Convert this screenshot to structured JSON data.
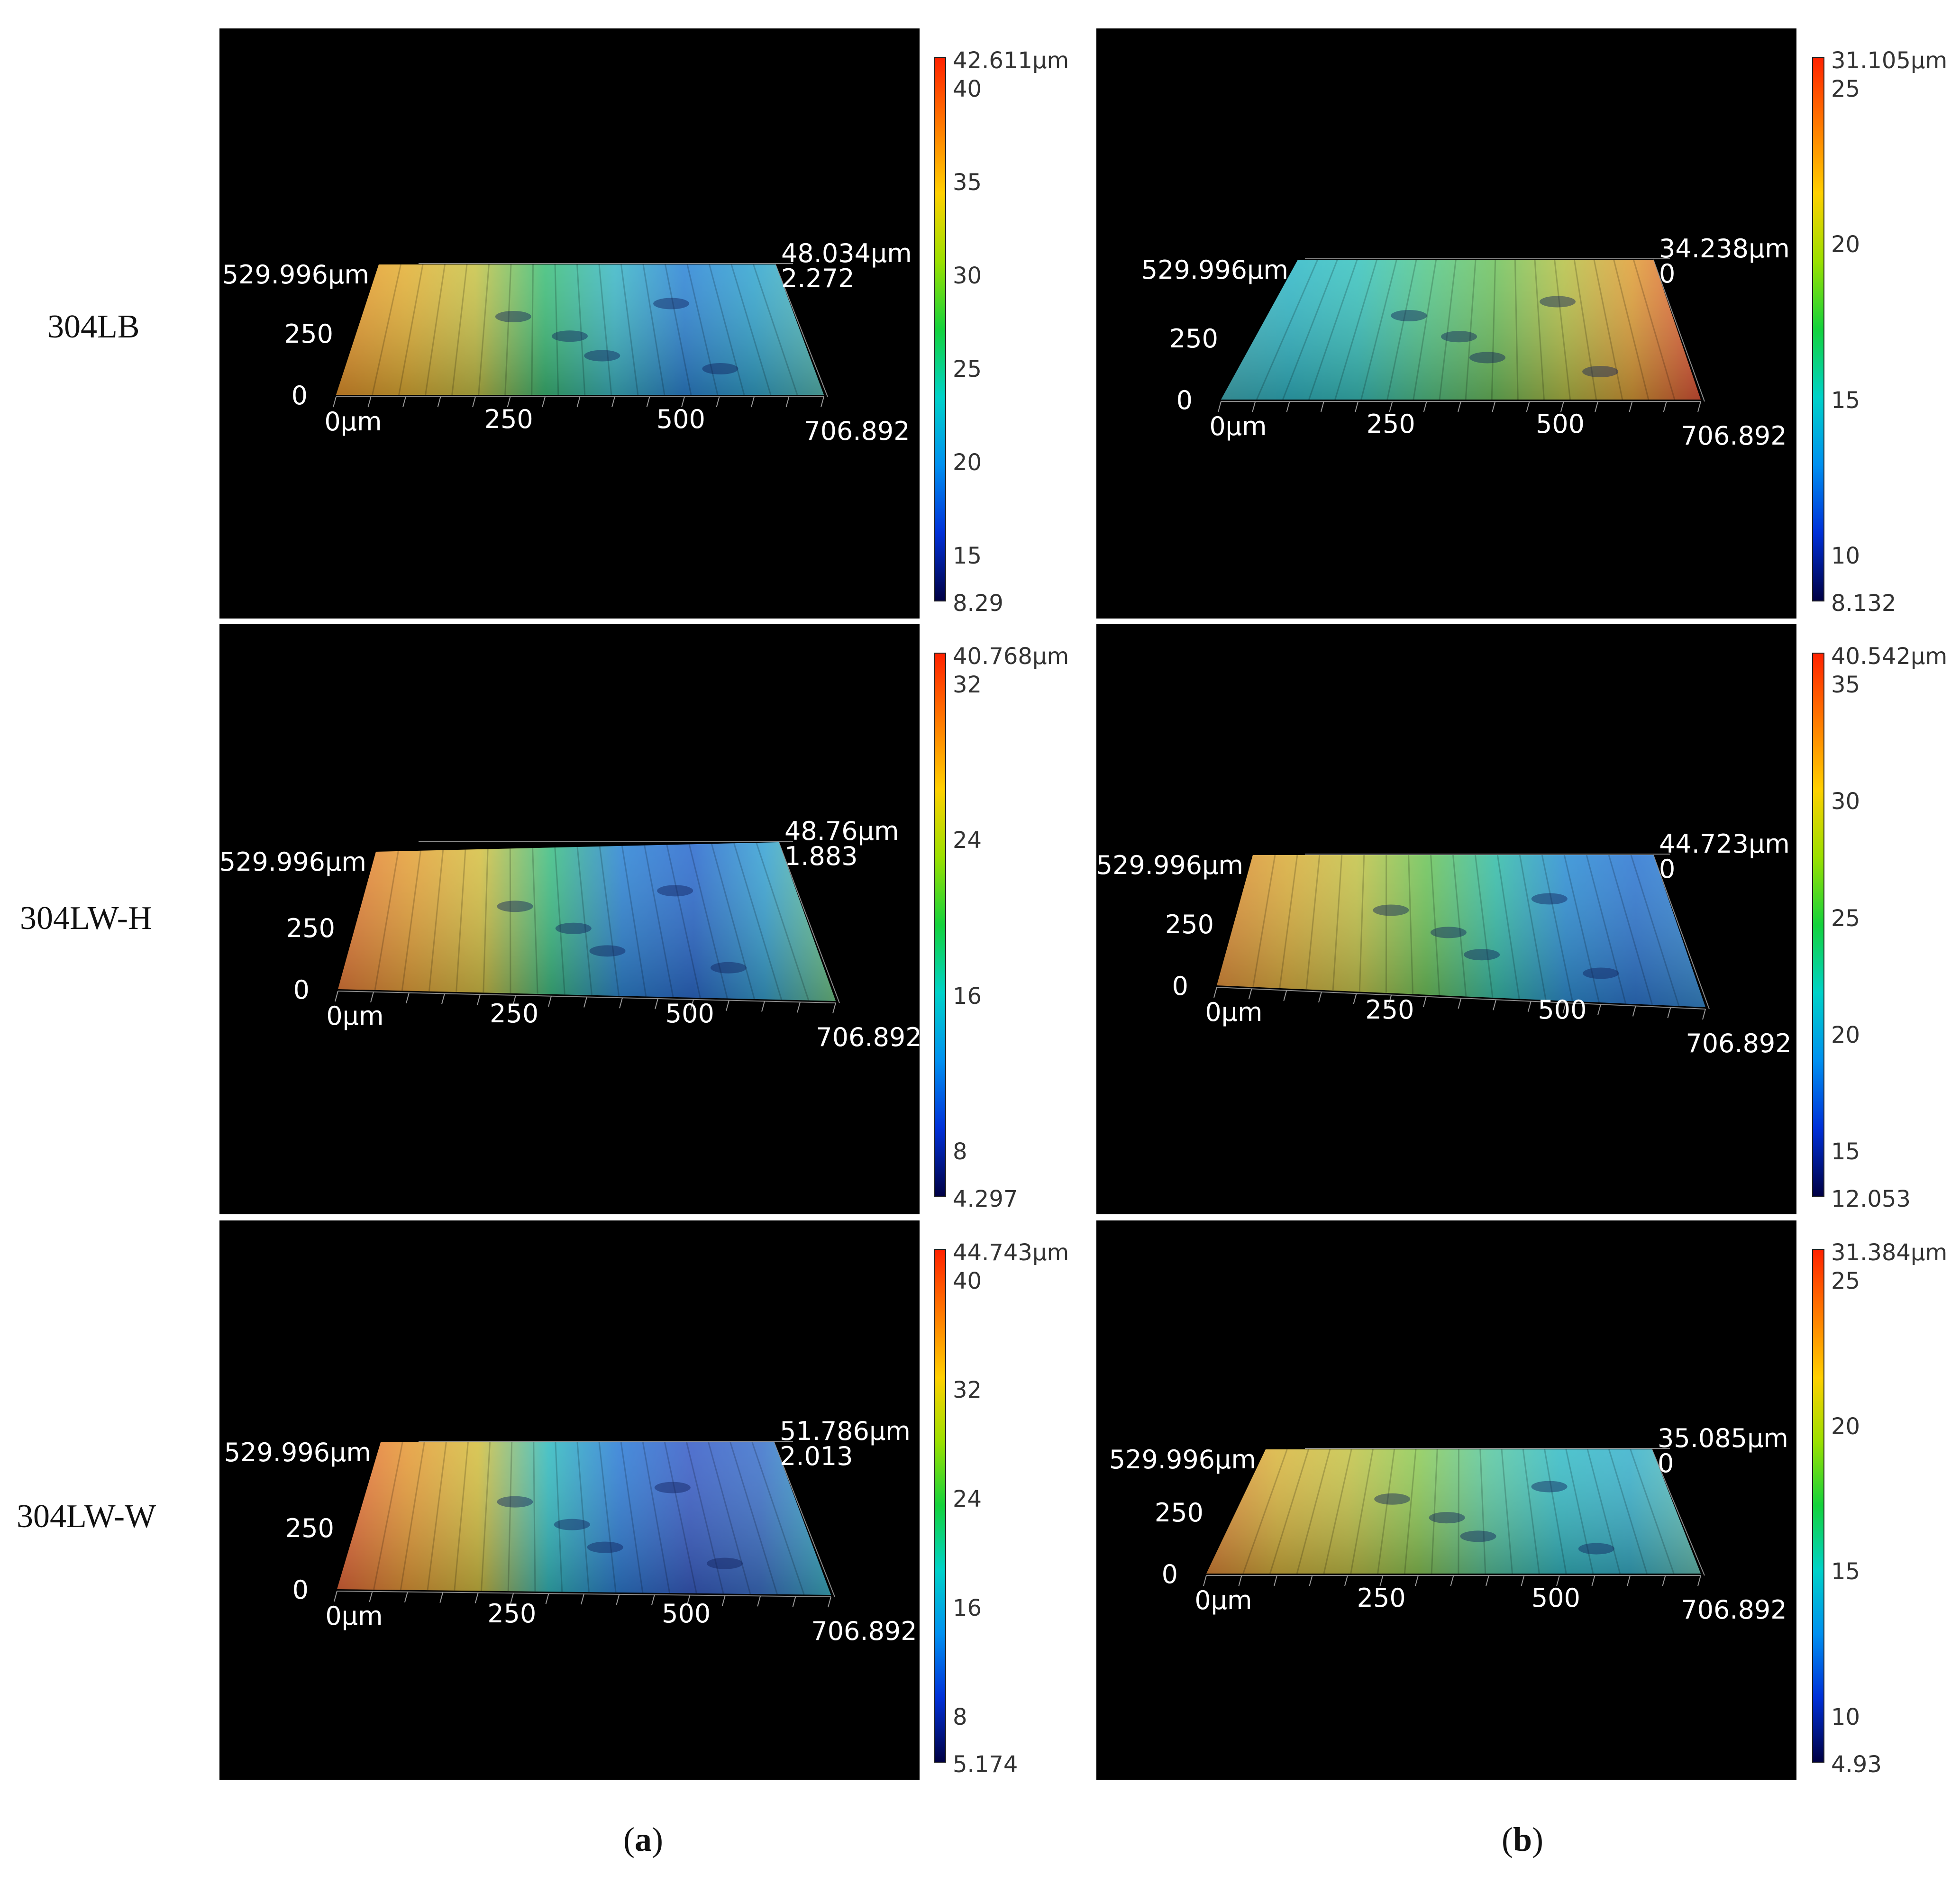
{
  "row_labels": [
    "304LB",
    "304LW-H",
    "304LW-W"
  ],
  "column_captions": [
    {
      "open": "(",
      "letter": "a",
      "close": ")"
    },
    {
      "open": "(",
      "letter": "b",
      "close": ")"
    }
  ],
  "colors": {
    "panel_bg": "#000000",
    "axis_text": "#ffffff"
  },
  "panels": [
    {
      "id": "a1",
      "column": "a",
      "sample": "304LB",
      "y_label": "529.996µm",
      "y_tick": "250",
      "origin": "0",
      "x_ticks": [
        "0µm",
        "250",
        "500",
        "706.892"
      ],
      "z_max": "48.034µm",
      "z_min": "2.272",
      "scale_max": "42.611µm",
      "scale_ticks": [
        "40",
        "35",
        "30",
        "25",
        "20",
        "15"
      ],
      "scale_min": "8.29",
      "palette": "a1"
    },
    {
      "id": "b1",
      "column": "b",
      "sample": "304LB",
      "y_label": "529.996µm",
      "y_tick": "250",
      "origin": "0",
      "x_ticks": [
        "0µm",
        "250",
        "500",
        "706.892"
      ],
      "z_max": "34.238µm",
      "z_min": "0",
      "scale_max": "31.105µm",
      "scale_ticks": [
        "25",
        "20",
        "15",
        "10"
      ],
      "scale_min": "8.132",
      "palette": "b1"
    },
    {
      "id": "a2",
      "column": "a",
      "sample": "304LW-H",
      "y_label": "529.996µm",
      "y_tick": "250",
      "origin": "0",
      "x_ticks": [
        "0µm",
        "250",
        "500",
        "706.892"
      ],
      "z_max": "48.76µm",
      "z_min": "1.883",
      "scale_max": "40.768µm",
      "scale_ticks": [
        "32",
        "24",
        "16",
        "8"
      ],
      "scale_min": "4.297",
      "palette": "a2"
    },
    {
      "id": "b2",
      "column": "b",
      "sample": "304LW-H",
      "y_label": "529.996µm",
      "y_tick": "250",
      "origin": "0",
      "x_ticks": [
        "0µm",
        "250",
        "500",
        "706.892"
      ],
      "z_max": "44.723µm",
      "z_min": "0",
      "scale_max": "40.542µm",
      "scale_ticks": [
        "35",
        "30",
        "25",
        "20",
        "15"
      ],
      "scale_min": "12.053",
      "palette": "b2"
    },
    {
      "id": "a3",
      "column": "a",
      "sample": "304LW-W",
      "y_label": "529.996µm",
      "y_tick": "250",
      "origin": "0",
      "x_ticks": [
        "0µm",
        "250",
        "500",
        "706.892"
      ],
      "z_max": "51.786µm",
      "z_min": "2.013",
      "scale_max": "44.743µm",
      "scale_ticks": [
        "40",
        "32",
        "24",
        "16",
        "8"
      ],
      "scale_min": "5.174",
      "palette": "a3"
    },
    {
      "id": "b3",
      "column": "b",
      "sample": "304LW-W",
      "y_label": "529.996µm",
      "y_tick": "250",
      "origin": "0",
      "x_ticks": [
        "0µm",
        "250",
        "500",
        "706.892"
      ],
      "z_max": "35.085µm",
      "z_min": "0",
      "scale_max": "31.384µm",
      "scale_ticks": [
        "25",
        "20",
        "15",
        "10"
      ],
      "scale_min": "4.93",
      "palette": "b3"
    }
  ]
}
